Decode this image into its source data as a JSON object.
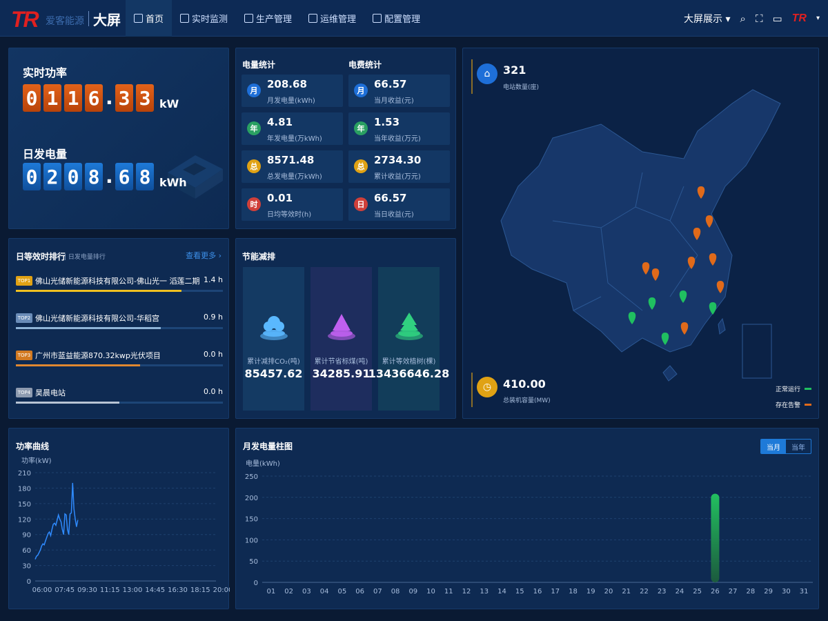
{
  "header": {
    "logo_text": "TR",
    "logo_sub": "爱客能源",
    "logo_title": "大屏",
    "nav": [
      {
        "label": "首页",
        "icon": "home-icon"
      },
      {
        "label": "实时监测",
        "icon": "monitor-icon"
      },
      {
        "label": "生产管理",
        "icon": "clipboard-icon"
      },
      {
        "label": "运维管理",
        "icon": "edit-icon"
      },
      {
        "label": "配置管理",
        "icon": "document-icon"
      }
    ],
    "screen_mode": "大屏展示",
    "user_logo": "TR"
  },
  "realtime": {
    "power_label": "实时功率",
    "power_digits": [
      "0",
      "1",
      "1",
      "6",
      ".",
      "3",
      "3"
    ],
    "power_unit": "kW",
    "day_label": "日发电量",
    "day_digits": [
      "0",
      "2",
      "0",
      "8",
      ".",
      "6",
      "8"
    ],
    "day_unit": "kWh"
  },
  "stats": {
    "energy_title": "电量统计",
    "revenue_title": "电费统计",
    "energy": [
      {
        "badge": "月",
        "value": "208.68",
        "label": "月发电量(kWh)",
        "color": "#1e6fd8"
      },
      {
        "badge": "年",
        "value": "4.81",
        "label": "年发电量(万kWh)",
        "color": "#2aa062"
      },
      {
        "badge": "总",
        "value": "8571.48",
        "label": "总发电量(万kWh)",
        "color": "#e0a214"
      },
      {
        "badge": "时",
        "value": "0.01",
        "label": "日均等效时(h)",
        "color": "#d0403a"
      }
    ],
    "revenue": [
      {
        "badge": "月",
        "value": "66.57",
        "label": "当月收益(元)",
        "color": "#1e6fd8"
      },
      {
        "badge": "年",
        "value": "1.53",
        "label": "当年收益(万元)",
        "color": "#2aa062"
      },
      {
        "badge": "总",
        "value": "2734.30",
        "label": "累计收益(万元)",
        "color": "#e0a214"
      },
      {
        "badge": "日",
        "value": "66.57",
        "label": "当日收益(元)",
        "color": "#d0403a"
      }
    ]
  },
  "ranking": {
    "title": "日等效时排行",
    "subtitle": "日发电量排行",
    "more": "查看更多",
    "items": [
      {
        "badge": "TOP1",
        "name": "佛山光储新能源科技有限公司-佛山光一 滔莲二期",
        "value": "1.4",
        "unit": "h",
        "ratio": 0.8,
        "color": "#f0c020",
        "badge_color": "#e0a214"
      },
      {
        "badge": "TOP2",
        "name": "佛山光储新能源科技有限公司-华稻宫",
        "value": "0.9",
        "unit": "h",
        "ratio": 0.7,
        "color": "#8fb4d8",
        "badge_color": "#6a8cb8"
      },
      {
        "badge": "TOP3",
        "name": "广州市蓝益能源870.32kwp光伏项目",
        "value": "0.0",
        "unit": "h",
        "ratio": 0.6,
        "color": "#e08830",
        "badge_color": "#d27a22"
      },
      {
        "badge": "TOP4",
        "name": "昊晨电站",
        "value": "0.0",
        "unit": "h",
        "ratio": 0.5,
        "color": "#b8c4d4",
        "badge_color": "#8e9bb0"
      }
    ]
  },
  "saving": {
    "title": "节能减排",
    "items": [
      {
        "label": "累计减排CO₂(吨)",
        "value": "85457.62",
        "icon": "cloud-icon",
        "color": "#5ab8ff"
      },
      {
        "label": "累计节省标煤(吨)",
        "value": "34285.91",
        "icon": "coal-icon",
        "color": "#c060f0"
      },
      {
        "label": "累计等效植树(棵)",
        "value": "13436646.28",
        "icon": "tree-icon",
        "color": "#30d080"
      }
    ]
  },
  "map": {
    "station_count": "321",
    "station_label": "电站数量(座)",
    "capacity": "410.00",
    "capacity_label": "总装机容量(MW)",
    "legend_normal": "正常运行",
    "legend_alarm": "存在告警",
    "normal_color": "#20c060",
    "alarm_color": "#e06a1a"
  },
  "power_curve": {
    "title": "功率曲线",
    "chart_data": {
      "type": "line",
      "ylabel": "功率(kW)",
      "ylim": [
        0,
        210
      ],
      "yticks": [
        0,
        30,
        60,
        90,
        120,
        150,
        180,
        210
      ],
      "xticks": [
        "06:00",
        "07:45",
        "09:30",
        "11:15",
        "13:00",
        "14:45",
        "16:30",
        "18:15",
        "20:00"
      ],
      "x_minutes": [
        360,
        366,
        372,
        378,
        384,
        390,
        396,
        402,
        408,
        414,
        420,
        426,
        432,
        438,
        444,
        450,
        456,
        462,
        468,
        474,
        480,
        486,
        492,
        498,
        504,
        510,
        516,
        522,
        528,
        534,
        540,
        546,
        552,
        558
      ],
      "series": [
        {
          "values": [
            42,
            48,
            50,
            55,
            60,
            68,
            72,
            70,
            78,
            85,
            92,
            95,
            88,
            100,
            110,
            112,
            108,
            118,
            128,
            120,
            115,
            100,
            90,
            130,
            128,
            100,
            90,
            130,
            132,
            190,
            140,
            120,
            105,
            118
          ]
        }
      ],
      "color": "#2f8bff"
    }
  },
  "monthly_bar": {
    "title": "月发电量柱图",
    "tab_month": "当月",
    "tab_year": "当年",
    "chart_data": {
      "type": "bar",
      "ylabel": "电量(kWh)",
      "ylim": [
        0,
        250
      ],
      "yticks": [
        0,
        50,
        100,
        150,
        200,
        250
      ],
      "categories": [
        "01",
        "02",
        "03",
        "04",
        "05",
        "06",
        "07",
        "08",
        "09",
        "10",
        "11",
        "12",
        "13",
        "14",
        "15",
        "16",
        "17",
        "18",
        "19",
        "20",
        "21",
        "22",
        "23",
        "24",
        "25",
        "26",
        "27",
        "28",
        "29",
        "30",
        "31"
      ],
      "values": [
        0,
        0,
        0,
        0,
        0,
        0,
        0,
        0,
        0,
        0,
        0,
        0,
        0,
        0,
        0,
        0,
        0,
        0,
        0,
        0,
        0,
        0,
        0,
        0,
        0,
        208.68,
        0,
        0,
        0,
        0,
        0
      ],
      "color": "#22c060"
    }
  }
}
